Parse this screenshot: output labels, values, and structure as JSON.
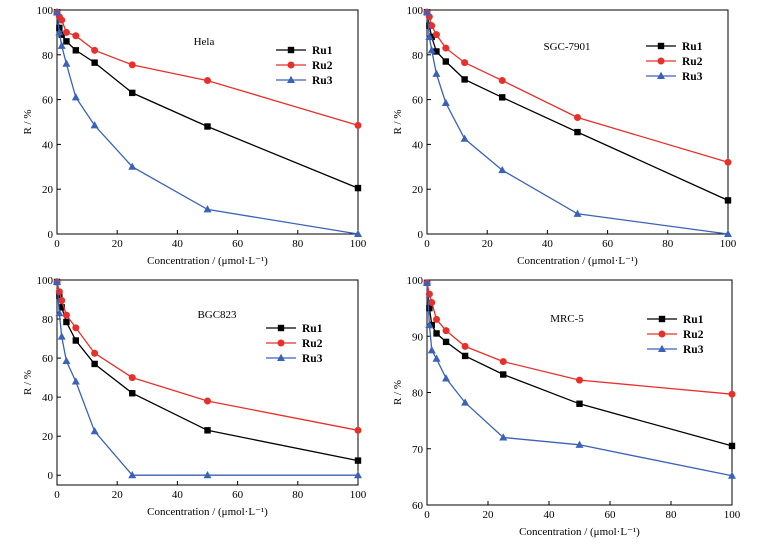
{
  "figure": {
    "axis_ylabel": "R / %",
    "axis_xlabel": "Concentration / (μmol·L⁻¹)"
  },
  "chart_data": [
    {
      "type": "line",
      "title": "Hela",
      "xlabel": "Concentration / (μmol·L⁻¹)",
      "ylabel": "R / %",
      "xlim": [
        0,
        100
      ],
      "ylim": [
        0,
        100
      ],
      "xticks": [
        0,
        20,
        40,
        60,
        80,
        100
      ],
      "yticks": [
        0,
        20,
        40,
        60,
        80,
        100
      ],
      "legend_position": "top-right",
      "x": [
        0,
        0.78,
        1.56,
        3.13,
        6.25,
        12.5,
        25,
        50,
        100
      ],
      "series": [
        {
          "name": "Ru1",
          "color": "#000000",
          "marker": "square",
          "values": [
            99,
            92,
            89,
            86,
            82,
            76.5,
            63,
            48,
            20.5
          ]
        },
        {
          "name": "Ru2",
          "color": "#e8302a",
          "marker": "circle",
          "values": [
            99,
            97,
            95.5,
            90,
            88.5,
            82,
            75.5,
            68.5,
            48.5
          ]
        },
        {
          "name": "Ru3",
          "color": "#3a62b8",
          "marker": "triangle",
          "values": [
            99,
            90,
            84,
            76,
            61,
            48.5,
            30,
            11,
            0
          ]
        }
      ]
    },
    {
      "type": "line",
      "title": "SGC-7901",
      "xlabel": "Concentration / (μmol·L⁻¹)",
      "ylabel": "R / %",
      "xlim": [
        0,
        100
      ],
      "ylim": [
        0,
        100
      ],
      "xticks": [
        0,
        20,
        40,
        60,
        80,
        100
      ],
      "yticks": [
        0,
        20,
        40,
        60,
        80,
        100
      ],
      "legend_position": "top-right",
      "x": [
        0,
        0.78,
        1.56,
        3.13,
        6.25,
        12.5,
        25,
        50,
        100
      ],
      "series": [
        {
          "name": "Ru1",
          "color": "#000000",
          "marker": "square",
          "values": [
            99,
            93,
            88,
            81.5,
            77,
            69,
            61,
            45.5,
            15
          ]
        },
        {
          "name": "Ru2",
          "color": "#e8302a",
          "marker": "circle",
          "values": [
            99,
            97,
            93,
            89,
            83,
            76.5,
            68.5,
            52,
            32
          ]
        },
        {
          "name": "Ru3",
          "color": "#3a62b8",
          "marker": "triangle",
          "values": [
            99,
            88,
            82,
            71.5,
            58.5,
            42.5,
            28.5,
            9,
            0
          ]
        }
      ]
    },
    {
      "type": "line",
      "title": "BGC823",
      "xlabel": "Concentration  / (μmol·L⁻¹)",
      "ylabel": "R / %",
      "xlim": [
        0,
        100
      ],
      "ylim": [
        -5,
        100
      ],
      "xticks": [
        0,
        20,
        40,
        60,
        80,
        100
      ],
      "yticks": [
        0,
        20,
        40,
        60,
        80,
        100
      ],
      "legend_position": "top-right",
      "x": [
        0,
        0.78,
        1.56,
        3.13,
        6.25,
        12.5,
        25,
        50,
        100
      ],
      "series": [
        {
          "name": "Ru1",
          "color": "#000000",
          "marker": "square",
          "values": [
            99,
            92,
            86,
            78.5,
            69,
            57,
            42,
            23,
            7.5
          ]
        },
        {
          "name": "Ru2",
          "color": "#e8302a",
          "marker": "circle",
          "values": [
            99,
            94,
            89.5,
            82,
            75.5,
            62.5,
            50,
            38,
            23
          ]
        },
        {
          "name": "Ru3",
          "color": "#3a62b8",
          "marker": "triangle",
          "values": [
            99,
            83,
            71,
            58.5,
            48,
            22.5,
            0,
            0,
            0
          ]
        }
      ]
    },
    {
      "type": "line",
      "title": "MRC-5",
      "xlabel": "Concentration / (μmol·L⁻¹)",
      "ylabel": "R / %",
      "xlim": [
        0,
        100
      ],
      "ylim": [
        60,
        100
      ],
      "xticks": [
        0,
        20,
        40,
        60,
        80,
        100
      ],
      "yticks": [
        60,
        70,
        80,
        90,
        100
      ],
      "legend_position": "top-right",
      "x": [
        0,
        0.78,
        1.56,
        3.13,
        6.25,
        12.5,
        25,
        50,
        100
      ],
      "series": [
        {
          "name": "Ru1",
          "color": "#000000",
          "marker": "square",
          "values": [
            99.5,
            95,
            92,
            90.5,
            89,
            86.5,
            83.2,
            78,
            70.5
          ]
        },
        {
          "name": "Ru2",
          "color": "#e8302a",
          "marker": "circle",
          "values": [
            99.5,
            97.5,
            96,
            93,
            91,
            88.2,
            85.5,
            82.2,
            79.7
          ]
        },
        {
          "name": "Ru3",
          "color": "#3a62b8",
          "marker": "triangle",
          "values": [
            99.5,
            92,
            87.5,
            86,
            82.5,
            78.2,
            72,
            70.7,
            65.2
          ]
        }
      ]
    }
  ]
}
